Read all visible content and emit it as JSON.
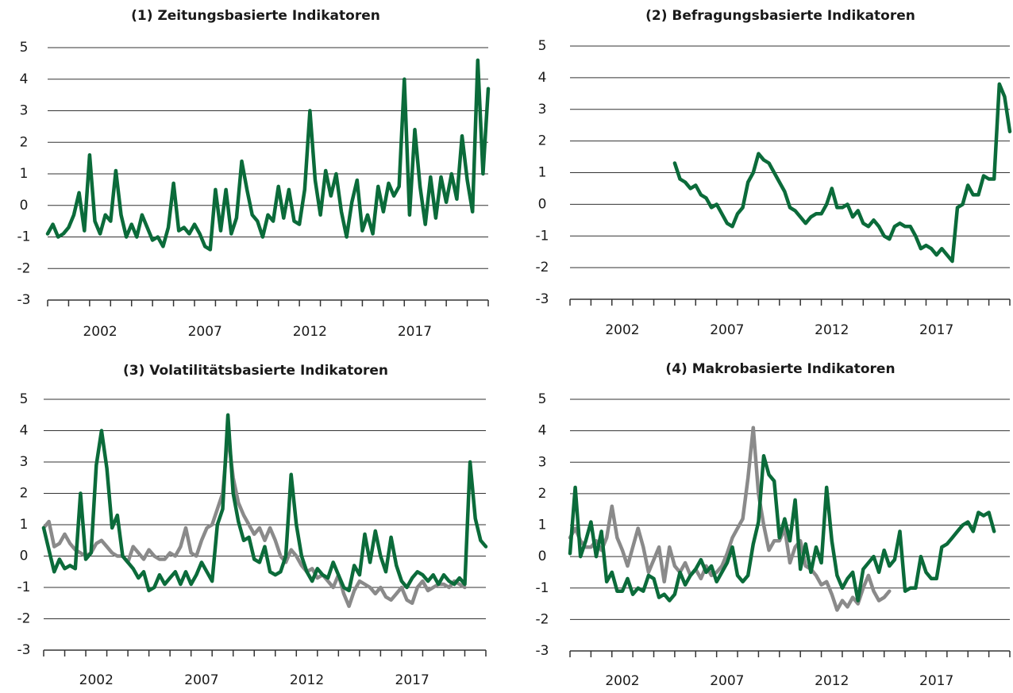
{
  "chart_data": [
    {
      "type": "line",
      "title": "(1) Zeitungsbasierte Indikatoren",
      "x": [
        2000,
        2000.25,
        2000.5,
        2000.75,
        2001,
        2001.25,
        2001.5,
        2001.75,
        2002,
        2002.25,
        2002.5,
        2002.75,
        2003,
        2003.25,
        2003.5,
        2003.75,
        2004,
        2004.25,
        2004.5,
        2004.75,
        2005,
        2005.25,
        2005.5,
        2005.75,
        2006,
        2006.25,
        2006.5,
        2006.75,
        2007,
        2007.25,
        2007.5,
        2007.75,
        2008,
        2008.25,
        2008.5,
        2008.75,
        2009,
        2009.25,
        2009.5,
        2009.75,
        2010,
        2010.25,
        2010.5,
        2010.75,
        2011,
        2011.25,
        2011.5,
        2011.75,
        2012,
        2012.25,
        2012.5,
        2012.75,
        2013,
        2013.25,
        2013.5,
        2013.75,
        2014,
        2014.25,
        2014.5,
        2014.75,
        2015,
        2015.25,
        2015.5,
        2015.75,
        2016,
        2016.25,
        2016.5,
        2016.75,
        2017,
        2017.25,
        2017.5,
        2017.75,
        2018,
        2018.25,
        2018.5,
        2018.75,
        2019,
        2019.25,
        2019.5,
        2019.75,
        2020,
        2020.25,
        2020.5,
        2020.75,
        2021
      ],
      "series": [
        {
          "color": "#0b6b3a",
          "values": [
            -0.9,
            -0.6,
            -1.0,
            -0.9,
            -0.7,
            -0.3,
            0.4,
            -0.8,
            1.6,
            -0.5,
            -0.9,
            -0.3,
            -0.5,
            1.1,
            -0.3,
            -1.0,
            -0.6,
            -1.0,
            -0.3,
            -0.7,
            -1.1,
            -1.0,
            -1.3,
            -0.7,
            0.7,
            -0.8,
            -0.7,
            -0.9,
            -0.6,
            -0.9,
            -1.3,
            -1.4,
            0.5,
            -0.8,
            0.5,
            -0.9,
            -0.4,
            1.4,
            0.5,
            -0.3,
            -0.5,
            -1.0,
            -0.3,
            -0.5,
            0.6,
            -0.4,
            0.5,
            -0.5,
            -0.6,
            0.5,
            3.0,
            0.8,
            -0.3,
            1.1,
            0.3,
            1.0,
            -0.2,
            -1.0,
            0.1,
            0.8,
            -0.8,
            -0.3,
            -0.9,
            0.6,
            -0.2,
            0.7,
            0.3,
            0.6,
            4.0,
            -0.3,
            2.4,
            0.6,
            -0.6,
            0.9,
            -0.4,
            0.9,
            0.1,
            1.0,
            0.2,
            2.2,
            0.8,
            -0.2,
            4.6,
            1.0,
            3.7
          ]
        }
      ],
      "xlim": [
        2000,
        2021
      ],
      "xticks": [
        2002,
        2007,
        2012,
        2017
      ],
      "xminorticks": [
        2000,
        2001,
        2002,
        2003,
        2004,
        2005,
        2006,
        2007,
        2008,
        2009,
        2010,
        2011,
        2012,
        2013,
        2014,
        2015,
        2016,
        2017,
        2018,
        2019,
        2020,
        2021
      ],
      "ylim": [
        -3,
        5
      ],
      "yticks": [
        -3,
        -2,
        -1,
        0,
        1,
        2,
        3,
        4,
        5
      ],
      "grid": true
    },
    {
      "type": "line",
      "title": "(2) Befragungsbasierte Indikatoren",
      "x": [
        2000,
        2000.25,
        2000.5,
        2000.75,
        2001,
        2001.25,
        2001.5,
        2001.75,
        2002,
        2002.25,
        2002.5,
        2002.75,
        2003,
        2003.25,
        2003.5,
        2003.75,
        2004,
        2004.25,
        2004.5,
        2004.75,
        2005,
        2005.25,
        2005.5,
        2005.75,
        2006,
        2006.25,
        2006.5,
        2006.75,
        2007,
        2007.25,
        2007.5,
        2007.75,
        2008,
        2008.25,
        2008.5,
        2008.75,
        2009,
        2009.25,
        2009.5,
        2009.75,
        2010,
        2010.25,
        2010.5,
        2010.75,
        2011,
        2011.25,
        2011.5,
        2011.75,
        2012,
        2012.25,
        2012.5,
        2012.75,
        2013,
        2013.25,
        2013.5,
        2013.75,
        2014,
        2014.25,
        2014.5,
        2014.75,
        2015,
        2015.25,
        2015.5,
        2015.75,
        2016,
        2016.25,
        2016.5,
        2016.75,
        2017,
        2017.25,
        2017.5,
        2017.75,
        2018,
        2018.25,
        2018.5,
        2018.75,
        2019,
        2019.25,
        2019.5,
        2019.75,
        2020,
        2020.25,
        2020.5,
        2020.75,
        2021
      ],
      "series": [
        {
          "color": "#0b6b3a",
          "values": [
            null,
            null,
            null,
            null,
            null,
            null,
            null,
            null,
            null,
            null,
            null,
            null,
            null,
            null,
            null,
            null,
            null,
            null,
            null,
            null,
            1.3,
            0.8,
            0.7,
            0.5,
            0.6,
            0.3,
            0.2,
            -0.1,
            0.0,
            -0.3,
            -0.6,
            -0.7,
            -0.3,
            -0.1,
            0.7,
            1.0,
            1.6,
            1.4,
            1.3,
            1.0,
            0.7,
            0.4,
            -0.1,
            -0.2,
            -0.4,
            -0.6,
            -0.4,
            -0.3,
            -0.3,
            0.0,
            0.5,
            -0.1,
            -0.1,
            0.0,
            -0.4,
            -0.2,
            -0.6,
            -0.7,
            -0.5,
            -0.7,
            -1.0,
            -1.1,
            -0.7,
            -0.6,
            -0.7,
            -0.7,
            -1.0,
            -1.4,
            -1.3,
            -1.4,
            -1.6,
            -1.4,
            -1.6,
            -1.8,
            -0.1,
            0.0,
            0.6,
            0.3,
            0.3,
            0.9,
            0.8,
            0.8,
            3.8,
            3.4,
            2.3
          ]
        }
      ],
      "xlim": [
        2000,
        2021
      ],
      "xticks": [
        2002,
        2007,
        2012,
        2017
      ],
      "xminorticks": [
        2000,
        2001,
        2002,
        2003,
        2004,
        2005,
        2006,
        2007,
        2008,
        2009,
        2010,
        2011,
        2012,
        2013,
        2014,
        2015,
        2016,
        2017,
        2018,
        2019,
        2020,
        2021
      ],
      "ylim": [
        -3,
        5
      ],
      "yticks": [
        -3,
        -2,
        -1,
        0,
        1,
        2,
        3,
        4,
        5
      ],
      "grid": true
    },
    {
      "type": "line",
      "title": "(3) Volatilitätsbasierte Indikatoren",
      "x": [
        2000,
        2000.25,
        2000.5,
        2000.75,
        2001,
        2001.25,
        2001.5,
        2001.75,
        2002,
        2002.25,
        2002.5,
        2002.75,
        2003,
        2003.25,
        2003.5,
        2003.75,
        2004,
        2004.25,
        2004.5,
        2004.75,
        2005,
        2005.25,
        2005.5,
        2005.75,
        2006,
        2006.25,
        2006.5,
        2006.75,
        2007,
        2007.25,
        2007.5,
        2007.75,
        2008,
        2008.25,
        2008.5,
        2008.75,
        2009,
        2009.25,
        2009.5,
        2009.75,
        2010,
        2010.25,
        2010.5,
        2010.75,
        2011,
        2011.25,
        2011.5,
        2011.75,
        2012,
        2012.25,
        2012.5,
        2012.75,
        2013,
        2013.25,
        2013.5,
        2013.75,
        2014,
        2014.25,
        2014.5,
        2014.75,
        2015,
        2015.25,
        2015.5,
        2015.75,
        2016,
        2016.25,
        2016.5,
        2016.75,
        2017,
        2017.25,
        2017.5,
        2017.75,
        2018,
        2018.25,
        2018.5,
        2018.75,
        2019,
        2019.25,
        2019.5,
        2019.75,
        2020,
        2020.25,
        2020.5,
        2020.75,
        2021
      ],
      "series": [
        {
          "color": "#8a8a8a",
          "values": [
            0.9,
            1.1,
            0.3,
            0.4,
            0.7,
            0.4,
            0.2,
            0.1,
            0.0,
            0.1,
            0.4,
            0.5,
            0.3,
            0.1,
            0.0,
            0.0,
            -0.2,
            0.3,
            0.1,
            -0.1,
            0.2,
            0.0,
            -0.1,
            -0.1,
            0.1,
            0.0,
            0.3,
            0.9,
            0.1,
            0.0,
            0.5,
            0.9,
            1.0,
            1.5,
            2.0,
            3.9,
            2.5,
            1.7,
            1.3,
            1.0,
            0.7,
            0.9,
            0.5,
            0.9,
            0.5,
            0.0,
            -0.2,
            0.2,
            0.0,
            -0.3,
            -0.5,
            -0.4,
            -0.7,
            -0.6,
            -0.8,
            -1.0,
            -0.6,
            -1.2,
            -1.6,
            -1.1,
            -0.8,
            -0.9,
            -1.0,
            -1.2,
            -1.0,
            -1.3,
            -1.4,
            -1.2,
            -1.0,
            -1.4,
            -1.5,
            -1.0,
            -0.8,
            -1.1,
            -1.0,
            -0.9,
            -0.9,
            -1.0,
            -0.8,
            -0.9,
            -1.0,
            null,
            null,
            null,
            null
          ]
        },
        {
          "color": "#0b6b3a",
          "values": [
            0.9,
            0.2,
            -0.5,
            -0.1,
            -0.4,
            -0.3,
            -0.4,
            2.0,
            -0.1,
            0.1,
            2.9,
            4.0,
            2.8,
            0.9,
            1.3,
            0.0,
            -0.2,
            -0.4,
            -0.7,
            -0.5,
            -1.1,
            -1.0,
            -0.6,
            -0.9,
            -0.7,
            -0.5,
            -0.9,
            -0.5,
            -0.9,
            -0.6,
            -0.2,
            -0.5,
            -0.8,
            1.0,
            1.5,
            4.5,
            2.0,
            1.1,
            0.5,
            0.6,
            -0.1,
            -0.2,
            0.3,
            -0.5,
            -0.6,
            -0.5,
            0.0,
            2.6,
            1.0,
            0.0,
            -0.5,
            -0.8,
            -0.4,
            -0.6,
            -0.7,
            -0.2,
            -0.6,
            -1.0,
            -1.1,
            -0.3,
            -0.6,
            0.7,
            -0.2,
            0.8,
            0.0,
            -0.5,
            0.6,
            -0.3,
            -0.8,
            -1.0,
            -0.7,
            -0.5,
            -0.6,
            -0.8,
            -0.6,
            -0.9,
            -0.6,
            -0.8,
            -0.9,
            -0.7,
            -0.9,
            3.0,
            1.2,
            0.5,
            0.3
          ]
        }
      ],
      "xlim": [
        2000,
        2021
      ],
      "xticks": [
        2002,
        2007,
        2012,
        2017
      ],
      "xminorticks": [
        2000,
        2001,
        2002,
        2003,
        2004,
        2005,
        2006,
        2007,
        2008,
        2009,
        2010,
        2011,
        2012,
        2013,
        2014,
        2015,
        2016,
        2017,
        2018,
        2019,
        2020,
        2021
      ],
      "ylim": [
        -3,
        5
      ],
      "yticks": [
        -3,
        -2,
        -1,
        0,
        1,
        2,
        3,
        4,
        5
      ],
      "grid": true
    },
    {
      "type": "line",
      "title": "(4) Makrobasierte Indikatoren",
      "x": [
        2000,
        2000.25,
        2000.5,
        2000.75,
        2001,
        2001.25,
        2001.5,
        2001.75,
        2002,
        2002.25,
        2002.5,
        2002.75,
        2003,
        2003.25,
        2003.5,
        2003.75,
        2004,
        2004.25,
        2004.5,
        2004.75,
        2005,
        2005.25,
        2005.5,
        2005.75,
        2006,
        2006.25,
        2006.5,
        2006.75,
        2007,
        2007.25,
        2007.5,
        2007.75,
        2008,
        2008.25,
        2008.5,
        2008.75,
        2009,
        2009.25,
        2009.5,
        2009.75,
        2010,
        2010.25,
        2010.5,
        2010.75,
        2011,
        2011.25,
        2011.5,
        2011.75,
        2012,
        2012.25,
        2012.5,
        2012.75,
        2013,
        2013.25,
        2013.5,
        2013.75,
        2014,
        2014.25,
        2014.5,
        2014.75,
        2015,
        2015.25,
        2015.5,
        2015.75,
        2016,
        2016.25,
        2016.5,
        2016.75,
        2017,
        2017.25,
        2017.5,
        2017.75,
        2018,
        2018.25,
        2018.5,
        2018.75,
        2019,
        2019.25,
        2019.5,
        2019.75,
        2020,
        2020.25,
        2020.5,
        2020.75,
        2021
      ],
      "series": [
        {
          "color": "#8a8a8a",
          "values": [
            0.6,
            0.9,
            0.5,
            0.3,
            0.3,
            0.5,
            0.2,
            0.6,
            1.6,
            0.6,
            0.2,
            -0.3,
            0.3,
            0.9,
            0.3,
            -0.5,
            -0.1,
            0.3,
            -0.8,
            0.3,
            -0.3,
            -0.5,
            -0.2,
            -0.6,
            -0.4,
            -0.7,
            -0.3,
            -0.6,
            -0.5,
            -0.3,
            0.1,
            0.6,
            0.9,
            1.2,
            2.5,
            4.1,
            2.0,
            1.0,
            0.2,
            0.5,
            0.5,
            0.9,
            -0.2,
            0.3,
            0.5,
            -0.3,
            -0.4,
            -0.6,
            -0.9,
            -0.8,
            -1.2,
            -1.7,
            -1.4,
            -1.6,
            -1.3,
            -1.5,
            -1.0,
            -0.6,
            -1.1,
            -1.4,
            -1.3,
            -1.1,
            null,
            null,
            null,
            null,
            null,
            null,
            null,
            null,
            null,
            null,
            null,
            null,
            null,
            null,
            null,
            null,
            null,
            null,
            null,
            null,
            null,
            null,
            null
          ]
        },
        {
          "color": "#0b6b3a",
          "values": [
            0.1,
            2.2,
            0.0,
            0.5,
            1.1,
            0.0,
            0.8,
            -0.8,
            -0.5,
            -1.1,
            -1.1,
            -0.7,
            -1.2,
            -1.0,
            -1.1,
            -0.6,
            -0.7,
            -1.3,
            -1.2,
            -1.4,
            -1.2,
            -0.5,
            -0.9,
            -0.6,
            -0.4,
            -0.1,
            -0.5,
            -0.3,
            -0.8,
            -0.5,
            -0.2,
            0.3,
            -0.6,
            -0.8,
            -0.6,
            0.4,
            1.1,
            3.2,
            2.6,
            2.4,
            0.6,
            1.2,
            0.5,
            1.8,
            -0.4,
            0.4,
            -0.5,
            0.3,
            -0.2,
            2.2,
            0.5,
            -0.6,
            -1.0,
            -0.7,
            -0.5,
            -1.4,
            -0.4,
            -0.2,
            0.0,
            -0.5,
            0.2,
            -0.3,
            -0.1,
            0.8,
            -1.1,
            -1.0,
            -1.0,
            0.0,
            -0.5,
            -0.7,
            -0.7,
            0.3,
            0.4,
            0.6,
            0.8,
            1.0,
            1.1,
            0.8,
            1.4,
            1.3,
            1.4,
            0.8,
            null,
            null,
            null
          ]
        }
      ],
      "xlim": [
        2000,
        2021
      ],
      "xticks": [
        2002,
        2007,
        2012,
        2017
      ],
      "xminorticks": [
        2000,
        2001,
        2002,
        2003,
        2004,
        2005,
        2006,
        2007,
        2008,
        2009,
        2010,
        2011,
        2012,
        2013,
        2014,
        2015,
        2016,
        2017,
        2018,
        2019,
        2020,
        2021
      ],
      "ylim": [
        -3,
        5
      ],
      "yticks": [
        -3,
        -2,
        -1,
        0,
        1,
        2,
        3,
        4,
        5
      ],
      "grid": true
    }
  ]
}
